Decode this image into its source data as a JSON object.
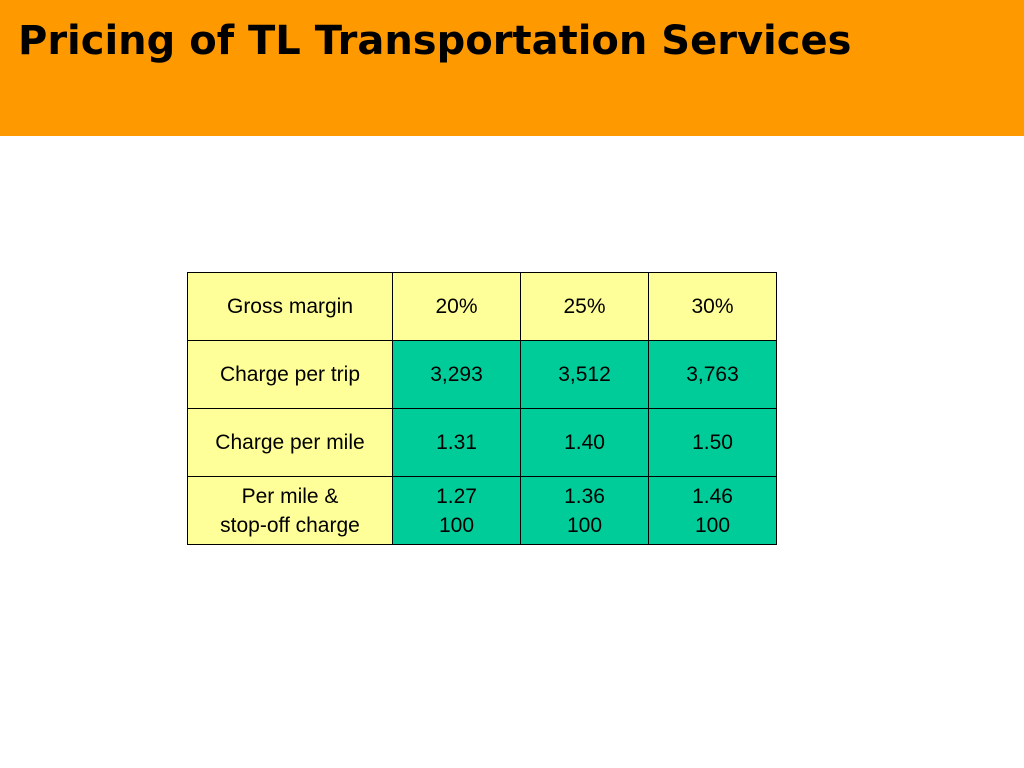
{
  "title": "Pricing of TL Transportation Services",
  "colors": {
    "title_bar": "#FF9900",
    "header_cell": "#FFFF99",
    "value_cell": "#00CC99",
    "border": "#000000"
  },
  "table": {
    "header": {
      "label": "Gross margin",
      "values": [
        "20%",
        "25%",
        "30%"
      ]
    },
    "rows": [
      {
        "label": "Charge per trip",
        "values": [
          "3,293",
          "3,512",
          "3,763"
        ]
      },
      {
        "label": "Charge per mile",
        "values": [
          "1.31",
          "1.40",
          "1.50"
        ]
      },
      {
        "label_line1": "Per mile &",
        "label_line2": "stop-off charge",
        "values_line1": [
          "1.27",
          "1.36",
          "1.46"
        ],
        "values_line2": [
          "100",
          "100",
          "100"
        ]
      }
    ]
  }
}
